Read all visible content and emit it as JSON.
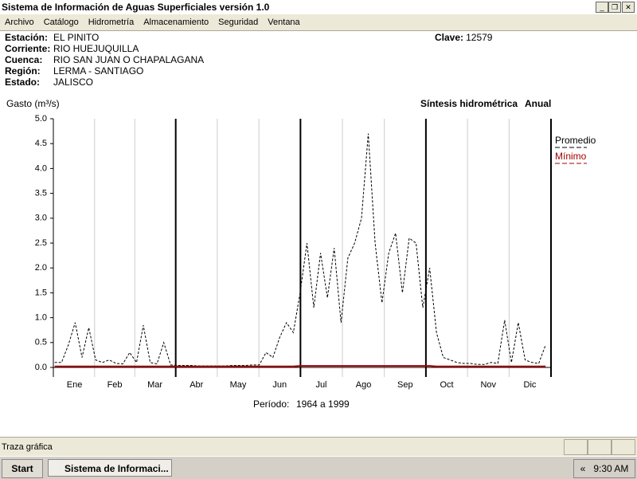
{
  "window": {
    "title": "Sistema de Información de Aguas Superficiales  versión 1.0",
    "menu": [
      "Archivo",
      "Catálogo",
      "Hidrometría",
      "Almacenamiento",
      "Seguridad",
      "Ventana"
    ]
  },
  "station": {
    "fields": [
      {
        "label": "Estación:",
        "value": "EL PINITO"
      },
      {
        "label": "Corriente:",
        "value": "RIO HUEJUQUILLA"
      },
      {
        "label": "Cuenca:",
        "value": "RIO SAN JUAN O CHAPALAGANA"
      },
      {
        "label": "Región:",
        "value": "LERMA - SANTIAGO"
      },
      {
        "label": "Estado:",
        "value": "JALISCO"
      }
    ],
    "clave": {
      "label": "Clave:",
      "value": "12579"
    }
  },
  "chart_data": {
    "type": "line",
    "title": "Síntesis hidrométrica",
    "subtitle": "Anual",
    "y_label": "Gasto (m³/s)",
    "period_label": "Período:",
    "period": "1964 a 1999",
    "x": [
      1,
      6,
      11,
      16,
      21,
      26,
      31,
      36,
      41,
      46,
      51,
      56,
      61,
      66,
      71,
      76,
      81,
      86,
      91,
      96,
      101,
      106,
      111,
      116,
      121,
      126,
      131,
      136,
      141,
      146,
      151,
      156,
      161,
      166,
      171,
      176,
      181,
      186,
      191,
      196,
      201,
      206,
      211,
      216,
      221,
      226,
      231,
      236,
      241,
      246,
      251,
      256,
      261,
      266,
      271,
      276,
      281,
      286,
      291,
      296,
      301,
      306,
      311,
      316,
      321,
      326,
      331,
      336,
      341,
      346,
      351,
      356,
      361
    ],
    "series": [
      {
        "name": "Promedio",
        "color": "#000000",
        "linestyle": "dashed",
        "values": [
          0.1,
          0.1,
          0.45,
          0.9,
          0.2,
          0.8,
          0.15,
          0.1,
          0.15,
          0.08,
          0.07,
          0.3,
          0.1,
          0.85,
          0.1,
          0.07,
          0.5,
          0.05,
          0.04,
          0.04,
          0.04,
          0.03,
          0.03,
          0.03,
          0.03,
          0.03,
          0.04,
          0.04,
          0.04,
          0.05,
          0.05,
          0.3,
          0.2,
          0.6,
          0.9,
          0.7,
          1.5,
          2.5,
          1.2,
          2.3,
          1.4,
          2.4,
          0.9,
          2.2,
          2.5,
          3.0,
          4.7,
          2.5,
          1.3,
          2.3,
          2.7,
          1.5,
          2.6,
          2.5,
          1.2,
          2.0,
          0.7,
          0.2,
          0.15,
          0.1,
          0.08,
          0.08,
          0.06,
          0.06,
          0.1,
          0.08,
          0.95,
          0.1,
          0.9,
          0.15,
          0.1,
          0.08,
          0.45
        ]
      },
      {
        "name": "Mínimo",
        "color": "#a00000",
        "linestyle": "solid",
        "values": [
          0.02,
          0.02,
          0.02,
          0.02,
          0.02,
          0.02,
          0.02,
          0.02,
          0.02,
          0.02,
          0.02,
          0.02,
          0.02,
          0.02,
          0.02,
          0.02,
          0.02,
          0.02,
          0.02,
          0.02,
          0.02,
          0.02,
          0.02,
          0.02,
          0.02,
          0.02,
          0.02,
          0.02,
          0.02,
          0.02,
          0.02,
          0.02,
          0.02,
          0.02,
          0.02,
          0.02,
          0.03,
          0.03,
          0.03,
          0.03,
          0.03,
          0.03,
          0.03,
          0.03,
          0.03,
          0.03,
          0.03,
          0.03,
          0.03,
          0.03,
          0.03,
          0.03,
          0.03,
          0.03,
          0.03,
          0.03,
          0.02,
          0.02,
          0.02,
          0.02,
          0.02,
          0.02,
          0.02,
          0.02,
          0.02,
          0.02,
          0.02,
          0.02,
          0.02,
          0.02,
          0.02,
          0.02,
          0.02
        ]
      }
    ],
    "xlim": [
      0,
      365
    ],
    "xticks": [
      {
        "value": 15.5,
        "label": "Ene"
      },
      {
        "value": 45,
        "label": "Feb"
      },
      {
        "value": 74.5,
        "label": "Mar"
      },
      {
        "value": 105,
        "label": "Abr"
      },
      {
        "value": 135.5,
        "label": "May"
      },
      {
        "value": 166,
        "label": "Jun"
      },
      {
        "value": 196.5,
        "label": "Jul"
      },
      {
        "value": 227.5,
        "label": "Ago"
      },
      {
        "value": 258,
        "label": "Sep"
      },
      {
        "value": 288.5,
        "label": "Oct"
      },
      {
        "value": 319,
        "label": "Nov"
      },
      {
        "value": 349.5,
        "label": "Dic"
      }
    ],
    "ylim": [
      0,
      5
    ],
    "yticks": [
      {
        "value": 0,
        "label": "0.0"
      },
      0.5,
      {
        "value": 1,
        "label": "1.0"
      },
      1.5,
      {
        "value": 2,
        "label": "2.0"
      },
      2.5,
      {
        "value": 3,
        "label": "3.0"
      },
      3.5,
      {
        "value": 4,
        "label": "4.0"
      },
      4.5,
      {
        "value": 5,
        "label": "5.0"
      }
    ],
    "grid": true
  },
  "status_bar": {
    "text": "Traza gráfica"
  },
  "taskbar": {
    "start": "Start",
    "task": "Sistema de Informaci...",
    "clock": "9:30 AM"
  }
}
